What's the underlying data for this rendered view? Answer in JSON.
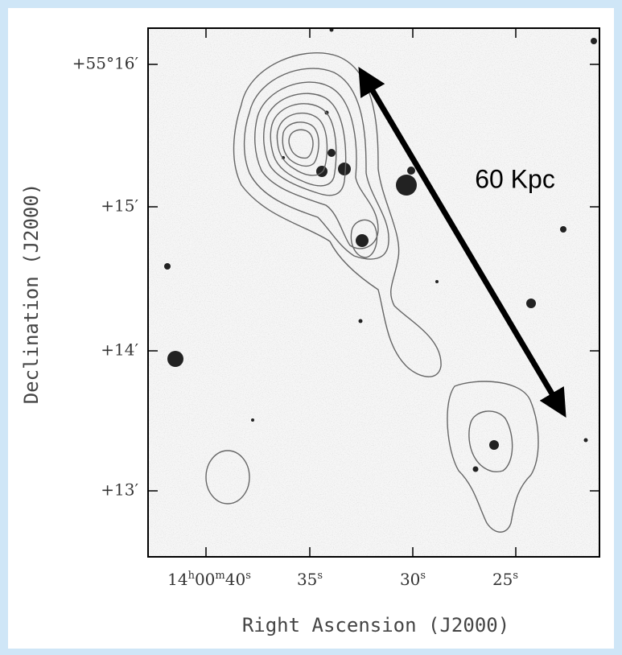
{
  "figure": {
    "y_axis_label": "Declination (J2000)",
    "x_axis_label": "Right Ascension (J2000)",
    "y_tick_labels": [
      "+55°16′",
      "+15′",
      "+14′",
      "+13′"
    ],
    "x_tick_labels": [
      [
        "14",
        "h",
        "00",
        "m",
        "40",
        "s"
      ],
      [
        "35",
        "s"
      ],
      [
        "30",
        "s"
      ],
      [
        "25",
        "s"
      ]
    ],
    "annotation": "60 Kpc"
  }
}
